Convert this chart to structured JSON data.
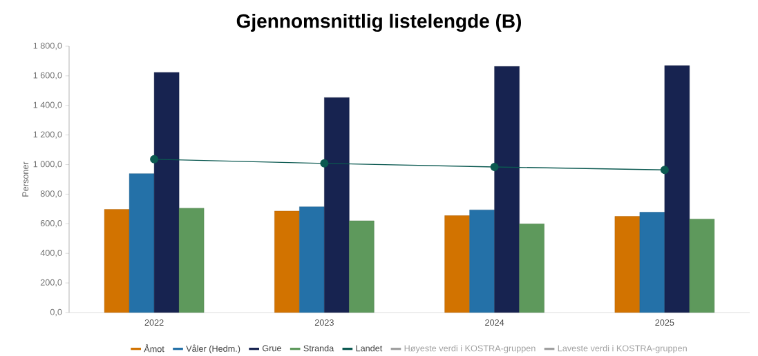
{
  "chart_data": {
    "type": "bar",
    "title": "Gjennomsnittlig listelengde (B)",
    "ylabel": "Personer",
    "categories": [
      "2022",
      "2023",
      "2024",
      "2025"
    ],
    "series": [
      {
        "name": "Åmot",
        "color": "#d27300",
        "values": [
          697,
          686,
          655,
          650
        ]
      },
      {
        "name": "Våler (Hedm.)",
        "color": "#2471a8",
        "values": [
          939,
          715,
          694,
          678
        ]
      },
      {
        "name": "Grue",
        "color": "#172350",
        "values": [
          1623,
          1453,
          1663,
          1669
        ]
      },
      {
        "name": "Stranda",
        "color": "#5e995c",
        "values": [
          705,
          620,
          599,
          632
        ]
      },
      {
        "name": "Landet",
        "type": "line",
        "marker": "circle",
        "color": "#0b5951",
        "values": [
          1036,
          1008,
          984,
          964
        ]
      },
      {
        "name": "Høyeste verdi i KOSTRA-gruppen",
        "type": "line",
        "color": "#a0a0a0",
        "values": [
          null,
          null,
          null,
          null
        ]
      },
      {
        "name": "Laveste verdi i KOSTRA-gruppen",
        "type": "line",
        "color": "#a0a0a0",
        "values": [
          null,
          null,
          null,
          null
        ]
      }
    ],
    "ylim": [
      0,
      1800
    ],
    "yticks": [
      {
        "value": 0,
        "label": "0,0"
      },
      {
        "value": 200,
        "label": "200,0"
      },
      {
        "value": 400,
        "label": "400,0"
      },
      {
        "value": 600,
        "label": "600,0"
      },
      {
        "value": 800,
        "label": "800,0"
      },
      {
        "value": 1000,
        "label": "1 000,0"
      },
      {
        "value": 1200,
        "label": "1 200,0"
      },
      {
        "value": 1400,
        "label": "1 400,0"
      },
      {
        "value": 1600,
        "label": "1 600,0"
      },
      {
        "value": 1800,
        "label": "1 800,0"
      }
    ],
    "legend": "bottom",
    "grid": false
  }
}
